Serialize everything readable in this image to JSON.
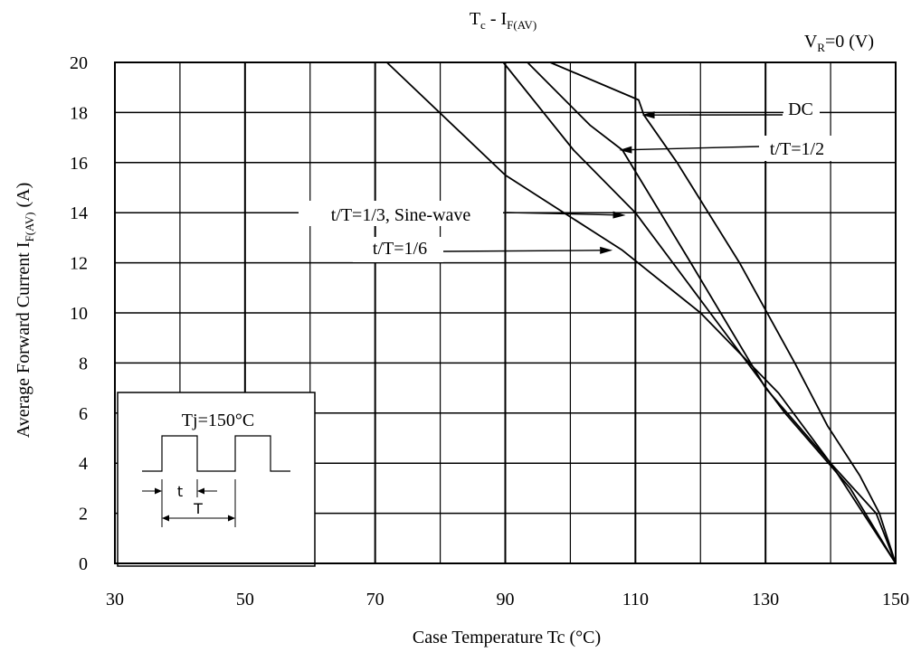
{
  "chart_data": {
    "type": "line",
    "title": {
      "main": "T",
      "main_sub": "c",
      "dash": " - I",
      "dash_sub": "F(AV)"
    },
    "condition": {
      "main": "V",
      "sub": "R",
      "rest": "=0 (V)"
    },
    "xlabel": "Case Temperature    Tc (°C)",
    "ylabel": {
      "main": "Average Forward Current    I",
      "sub": "F(AV)",
      "rest": " (A)"
    },
    "xlim": [
      30,
      150
    ],
    "ylim": [
      0,
      20
    ],
    "x_ticks": [
      "30",
      "50",
      "70",
      "90",
      "110",
      "130",
      "150"
    ],
    "y_ticks": [
      "0",
      "2",
      "4",
      "6",
      "8",
      "10",
      "12",
      "14",
      "16",
      "18",
      "20"
    ],
    "x_grid_step": 10,
    "y_grid_step": 2,
    "grid": true,
    "series": [
      {
        "name": "DC",
        "points": [
          [
            96.9,
            20
          ],
          [
            110.5,
            18.5
          ],
          [
            111.3,
            17.9
          ],
          [
            116.4,
            16
          ],
          [
            126,
            12
          ],
          [
            134.5,
            8
          ],
          [
            139.5,
            5.5
          ],
          [
            144.5,
            3.5
          ],
          [
            147.5,
            2
          ],
          [
            150,
            0
          ]
        ]
      },
      {
        "name": "t/T=1/2",
        "points": [
          [
            93.4,
            20
          ],
          [
            103,
            17.5
          ],
          [
            108,
            16.5
          ],
          [
            118.5,
            12
          ],
          [
            130,
            7
          ],
          [
            140,
            4
          ],
          [
            147,
            2
          ],
          [
            150,
            0
          ]
        ]
      },
      {
        "name": "t/T=1/3, Sine-wave",
        "points": [
          [
            89.7,
            20
          ],
          [
            100.5,
            16.5
          ],
          [
            110,
            14
          ],
          [
            121.5,
            10
          ],
          [
            133,
            6
          ],
          [
            143,
            3
          ],
          [
            150,
            0
          ]
        ]
      },
      {
        "name": "t/T=1/6",
        "points": [
          [
            71.8,
            20
          ],
          [
            90,
            15.5
          ],
          [
            108,
            12.5
          ],
          [
            120,
            10
          ],
          [
            132,
            6.8
          ],
          [
            140,
            4
          ],
          [
            150,
            0
          ]
        ]
      }
    ],
    "annotations": [
      {
        "text": "DC",
        "arrow_to": [
          111,
          17.9
        ]
      },
      {
        "text": "t/T=1/2",
        "arrow_to": [
          107.5,
          16.5
        ]
      },
      {
        "text": "t/T=1/3, Sine-wave",
        "arrow_to": [
          108.5,
          13.9
        ]
      },
      {
        "text": "t/T=1/6",
        "arrow_to": [
          106.5,
          12.5
        ]
      }
    ],
    "inset": {
      "label": "Tj=150°C",
      "t_label": "t",
      "T_label": "T"
    }
  }
}
